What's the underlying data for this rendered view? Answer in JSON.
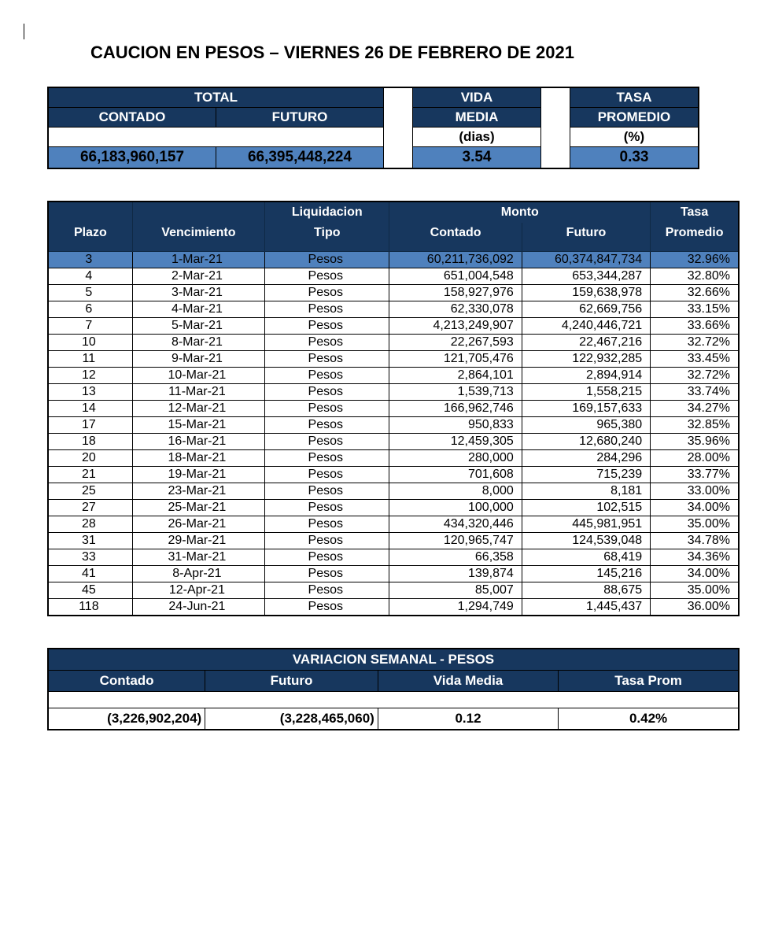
{
  "title": "CAUCION EN PESOS – VIERNES 26 DE FEBRERO DE 2021",
  "colors": {
    "header_dark": "#17375e",
    "header_text": "#ffffff",
    "accent_blue": "#4f81bd",
    "border": "#000000",
    "background": "#ffffff"
  },
  "summary": {
    "headers": {
      "total": "TOTAL",
      "vida": "VIDA",
      "tasa": "TASA",
      "contado": "CONTADO",
      "futuro": "FUTURO",
      "media": "MEDIA",
      "promedio": "PROMEDIO",
      "dias": "(dias)",
      "pct": "(%)"
    },
    "values": {
      "contado": "66,183,960,157",
      "futuro": "66,395,448,224",
      "vida_media": "3.54",
      "tasa_prom": "0.33"
    },
    "col_widths": {
      "contado": 200,
      "futuro": 200,
      "vida": 150,
      "tasa": 150
    }
  },
  "detail": {
    "headers": {
      "plazo": "Plazo",
      "venc": "Vencimiento",
      "liq_top": "Liquidacion",
      "liq_bot": "Tipo",
      "monto": "Monto",
      "contado": "Contado",
      "futuro": "Futuro",
      "tasa_top": "Tasa",
      "tasa_bot": "Promedio"
    },
    "col_widths": {
      "plazo": 105,
      "venc": 165,
      "tipo": 155,
      "contado": 165,
      "futuro": 160,
      "tasa": 110
    },
    "font_size": 16,
    "rows": [
      {
        "hl": true,
        "plazo": "3",
        "venc": "1-Mar-21",
        "tipo": "Pesos",
        "contado": "60,211,736,092",
        "futuro": "60,374,847,734",
        "tasa": "32.96%"
      },
      {
        "hl": false,
        "plazo": "4",
        "venc": "2-Mar-21",
        "tipo": "Pesos",
        "contado": "651,004,548",
        "futuro": "653,344,287",
        "tasa": "32.80%"
      },
      {
        "hl": false,
        "plazo": "5",
        "venc": "3-Mar-21",
        "tipo": "Pesos",
        "contado": "158,927,976",
        "futuro": "159,638,978",
        "tasa": "32.66%"
      },
      {
        "hl": false,
        "plazo": "6",
        "venc": "4-Mar-21",
        "tipo": "Pesos",
        "contado": "62,330,078",
        "futuro": "62,669,756",
        "tasa": "33.15%"
      },
      {
        "hl": false,
        "plazo": "7",
        "venc": "5-Mar-21",
        "tipo": "Pesos",
        "contado": "4,213,249,907",
        "futuro": "4,240,446,721",
        "tasa": "33.66%"
      },
      {
        "hl": false,
        "plazo": "10",
        "venc": "8-Mar-21",
        "tipo": "Pesos",
        "contado": "22,267,593",
        "futuro": "22,467,216",
        "tasa": "32.72%"
      },
      {
        "hl": false,
        "plazo": "11",
        "venc": "9-Mar-21",
        "tipo": "Pesos",
        "contado": "121,705,476",
        "futuro": "122,932,285",
        "tasa": "33.45%"
      },
      {
        "hl": false,
        "plazo": "12",
        "venc": "10-Mar-21",
        "tipo": "Pesos",
        "contado": "2,864,101",
        "futuro": "2,894,914",
        "tasa": "32.72%"
      },
      {
        "hl": false,
        "plazo": "13",
        "venc": "11-Mar-21",
        "tipo": "Pesos",
        "contado": "1,539,713",
        "futuro": "1,558,215",
        "tasa": "33.74%"
      },
      {
        "hl": false,
        "plazo": "14",
        "venc": "12-Mar-21",
        "tipo": "Pesos",
        "contado": "166,962,746",
        "futuro": "169,157,633",
        "tasa": "34.27%"
      },
      {
        "hl": false,
        "plazo": "17",
        "venc": "15-Mar-21",
        "tipo": "Pesos",
        "contado": "950,833",
        "futuro": "965,380",
        "tasa": "32.85%"
      },
      {
        "hl": false,
        "plazo": "18",
        "venc": "16-Mar-21",
        "tipo": "Pesos",
        "contado": "12,459,305",
        "futuro": "12,680,240",
        "tasa": "35.96%"
      },
      {
        "hl": false,
        "plazo": "20",
        "venc": "18-Mar-21",
        "tipo": "Pesos",
        "contado": "280,000",
        "futuro": "284,296",
        "tasa": "28.00%"
      },
      {
        "hl": false,
        "plazo": "21",
        "venc": "19-Mar-21",
        "tipo": "Pesos",
        "contado": "701,608",
        "futuro": "715,239",
        "tasa": "33.77%"
      },
      {
        "hl": false,
        "plazo": "25",
        "venc": "23-Mar-21",
        "tipo": "Pesos",
        "contado": "8,000",
        "futuro": "8,181",
        "tasa": "33.00%"
      },
      {
        "hl": false,
        "plazo": "27",
        "venc": "25-Mar-21",
        "tipo": "Pesos",
        "contado": "100,000",
        "futuro": "102,515",
        "tasa": "34.00%"
      },
      {
        "hl": false,
        "plazo": "28",
        "venc": "26-Mar-21",
        "tipo": "Pesos",
        "contado": "434,320,446",
        "futuro": "445,981,951",
        "tasa": "35.00%"
      },
      {
        "hl": false,
        "plazo": "31",
        "venc": "29-Mar-21",
        "tipo": "Pesos",
        "contado": "120,965,747",
        "futuro": "124,539,048",
        "tasa": "34.78%"
      },
      {
        "hl": false,
        "plazo": "33",
        "venc": "31-Mar-21",
        "tipo": "Pesos",
        "contado": "66,358",
        "futuro": "68,419",
        "tasa": "34.36%"
      },
      {
        "hl": false,
        "plazo": "41",
        "venc": "8-Apr-21",
        "tipo": "Pesos",
        "contado": "139,874",
        "futuro": "145,216",
        "tasa": "34.00%"
      },
      {
        "hl": false,
        "plazo": "45",
        "venc": "12-Apr-21",
        "tipo": "Pesos",
        "contado": "85,007",
        "futuro": "88,675",
        "tasa": "35.00%"
      },
      {
        "hl": false,
        "plazo": "118",
        "venc": "24-Jun-21",
        "tipo": "Pesos",
        "contado": "1,294,749",
        "futuro": "1,445,437",
        "tasa": "36.00%"
      }
    ]
  },
  "variacion": {
    "title": "VARIACION SEMANAL - PESOS",
    "headers": {
      "contado": "Contado",
      "futuro": "Futuro",
      "vida": "Vida Media",
      "tasa": "Tasa Prom"
    },
    "values": {
      "contado": "(3,226,902,204)",
      "futuro": "(3,228,465,060)",
      "vida": "0.12",
      "tasa": "0.42%"
    },
    "col_widths": {
      "contado": 200,
      "futuro": 220,
      "vida": 230,
      "tasa": 230
    }
  }
}
